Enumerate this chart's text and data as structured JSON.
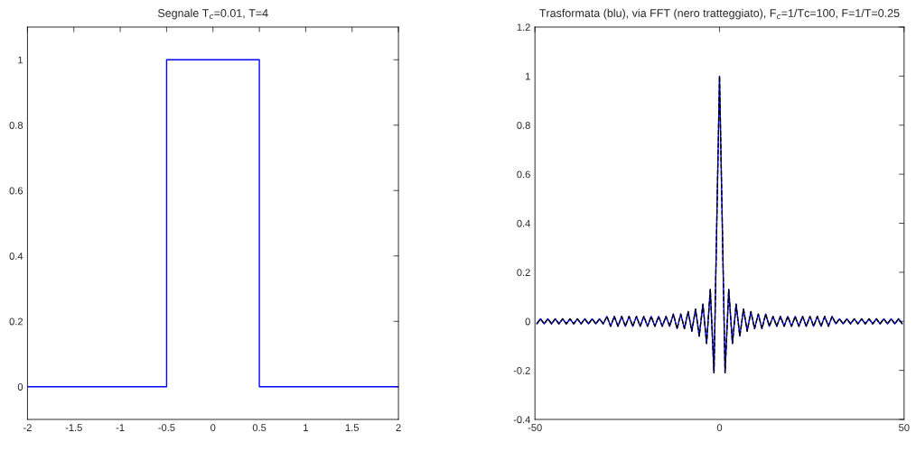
{
  "chart_data": [
    {
      "type": "line",
      "title": "Segnale T$_{c}$=0.01, T=4",
      "xlim": [
        -2,
        2
      ],
      "xticks": [
        -2,
        -1.5,
        -1,
        -0.5,
        0,
        0.5,
        1,
        1.5,
        2
      ],
      "ylim": [
        -0.1,
        1.1
      ],
      "yticks": [
        0,
        0.2,
        0.4,
        0.6,
        0.8,
        1
      ],
      "grid": false,
      "series": [
        {
          "color": "#0000ff",
          "line_style": "solid",
          "x": [
            -2,
            -0.5,
            -0.5,
            0.5,
            0.5,
            2
          ],
          "values": [
            0,
            0,
            1,
            1,
            0,
            0
          ]
        }
      ]
    },
    {
      "type": "line",
      "title": "Trasformata (blu), via FFT (nero tratteggiato), F$_{c}$=1/Tc=100, F=1/T=0.25",
      "xlim": [
        -50,
        50
      ],
      "xticks": [
        -50,
        0,
        50
      ],
      "ylim": [
        -0.4,
        1.2
      ],
      "yticks": [
        -0.4,
        -0.2,
        0,
        0.2,
        0.4,
        0.6,
        0.8,
        1,
        1.2
      ],
      "grid": false,
      "series": [
        {
          "color": "#0000ff",
          "line_style": "solid",
          "x": [
            -49.5,
            -48.5,
            -47.5,
            -46.5,
            -45.5,
            -44.5,
            -43.5,
            -42.5,
            -41.5,
            -40.5,
            -39.5,
            -38.5,
            -37.5,
            -36.5,
            -35.5,
            -34.5,
            -33.5,
            -32.5,
            -31.5,
            -30.5,
            -29.5,
            -28.5,
            -27.5,
            -26.5,
            -25.5,
            -24.5,
            -23.5,
            -22.5,
            -21.5,
            -20.5,
            -19.5,
            -18.5,
            -17.5,
            -16.5,
            -15.5,
            -14.5,
            -13.5,
            -12.5,
            -11.5,
            -10.5,
            -9.5,
            -8.5,
            -7.5,
            -6.5,
            -5.5,
            -4.5,
            -3.5,
            -2.5,
            -1.5,
            0,
            1.5,
            2.5,
            3.5,
            4.5,
            5.5,
            6.5,
            7.5,
            8.5,
            9.5,
            10.5,
            11.5,
            12.5,
            13.5,
            14.5,
            15.5,
            16.5,
            17.5,
            18.5,
            19.5,
            20.5,
            21.5,
            22.5,
            23.5,
            24.5,
            25.5,
            26.5,
            27.5,
            28.5,
            29.5,
            30.5,
            31.5,
            32.5,
            33.5,
            34.5,
            35.5,
            36.5,
            37.5,
            38.5,
            39.5,
            40.5,
            41.5,
            42.5,
            43.5,
            44.5,
            45.5,
            46.5,
            47.5,
            48.5,
            49.5
          ],
          "values": [
            -0.01,
            0.01,
            -0.01,
            0.01,
            -0.01,
            0.01,
            -0.01,
            0.01,
            -0.01,
            0.01,
            -0.01,
            0.01,
            -0.01,
            0.01,
            -0.01,
            0.01,
            -0.01,
            0.01,
            -0.01,
            0.02,
            -0.02,
            0.02,
            -0.02,
            0.02,
            -0.02,
            0.02,
            -0.02,
            0.02,
            -0.02,
            0.02,
            -0.02,
            0.02,
            -0.02,
            0.02,
            -0.02,
            0.02,
            -0.02,
            0.03,
            -0.03,
            0.03,
            -0.03,
            0.04,
            -0.04,
            0.05,
            -0.06,
            0.07,
            -0.09,
            0.13,
            -0.21,
            1,
            -0.21,
            0.13,
            -0.09,
            0.07,
            -0.06,
            0.05,
            -0.04,
            0.04,
            -0.03,
            0.03,
            -0.03,
            0.03,
            -0.02,
            0.02,
            -0.02,
            0.02,
            -0.02,
            0.02,
            -0.02,
            0.02,
            -0.02,
            0.02,
            -0.02,
            0.02,
            -0.02,
            0.02,
            -0.02,
            0.02,
            -0.02,
            0.02,
            -0.01,
            0.01,
            -0.01,
            0.01,
            -0.01,
            0.01,
            -0.01,
            0.01,
            -0.01,
            0.01,
            -0.01,
            0.01,
            -0.01,
            0.01,
            -0.01,
            0.01,
            -0.01,
            0.01,
            -0.01
          ]
        },
        {
          "color": "#000000",
          "line_style": "dashed",
          "x": [
            -49.5,
            -48.5,
            -47.5,
            -46.5,
            -45.5,
            -44.5,
            -43.5,
            -42.5,
            -41.5,
            -40.5,
            -39.5,
            -38.5,
            -37.5,
            -36.5,
            -35.5,
            -34.5,
            -33.5,
            -32.5,
            -31.5,
            -30.5,
            -29.5,
            -28.5,
            -27.5,
            -26.5,
            -25.5,
            -24.5,
            -23.5,
            -22.5,
            -21.5,
            -20.5,
            -19.5,
            -18.5,
            -17.5,
            -16.5,
            -15.5,
            -14.5,
            -13.5,
            -12.5,
            -11.5,
            -10.5,
            -9.5,
            -8.5,
            -7.5,
            -6.5,
            -5.5,
            -4.5,
            -3.5,
            -2.5,
            -1.5,
            0,
            1.5,
            2.5,
            3.5,
            4.5,
            5.5,
            6.5,
            7.5,
            8.5,
            9.5,
            10.5,
            11.5,
            12.5,
            13.5,
            14.5,
            15.5,
            16.5,
            17.5,
            18.5,
            19.5,
            20.5,
            21.5,
            22.5,
            23.5,
            24.5,
            25.5,
            26.5,
            27.5,
            28.5,
            29.5,
            30.5,
            31.5,
            32.5,
            33.5,
            34.5,
            35.5,
            36.5,
            37.5,
            38.5,
            39.5,
            40.5,
            41.5,
            42.5,
            43.5,
            44.5,
            45.5,
            46.5,
            47.5,
            48.5,
            49.5
          ],
          "values": [
            -0.01,
            0.01,
            -0.01,
            0.01,
            -0.01,
            0.01,
            -0.01,
            0.01,
            -0.01,
            0.01,
            -0.01,
            0.01,
            -0.01,
            0.01,
            -0.01,
            0.01,
            -0.01,
            0.01,
            -0.01,
            0.02,
            -0.02,
            0.02,
            -0.02,
            0.02,
            -0.02,
            0.02,
            -0.02,
            0.02,
            -0.02,
            0.02,
            -0.02,
            0.02,
            -0.02,
            0.02,
            -0.02,
            0.02,
            -0.02,
            0.03,
            -0.03,
            0.03,
            -0.03,
            0.04,
            -0.04,
            0.05,
            -0.06,
            0.07,
            -0.09,
            0.13,
            -0.21,
            1,
            -0.21,
            0.13,
            -0.09,
            0.07,
            -0.06,
            0.05,
            -0.04,
            0.04,
            -0.03,
            0.03,
            -0.03,
            0.03,
            -0.02,
            0.02,
            -0.02,
            0.02,
            -0.02,
            0.02,
            -0.02,
            0.02,
            -0.02,
            0.02,
            -0.02,
            0.02,
            -0.02,
            0.02,
            -0.02,
            0.02,
            -0.02,
            0.02,
            -0.01,
            0.01,
            -0.01,
            0.01,
            -0.01,
            0.01,
            -0.01,
            0.01,
            -0.01,
            0.01,
            -0.01,
            0.01,
            -0.01,
            0.01,
            -0.01,
            0.01,
            -0.01,
            0.01,
            -0.01
          ]
        }
      ]
    }
  ]
}
